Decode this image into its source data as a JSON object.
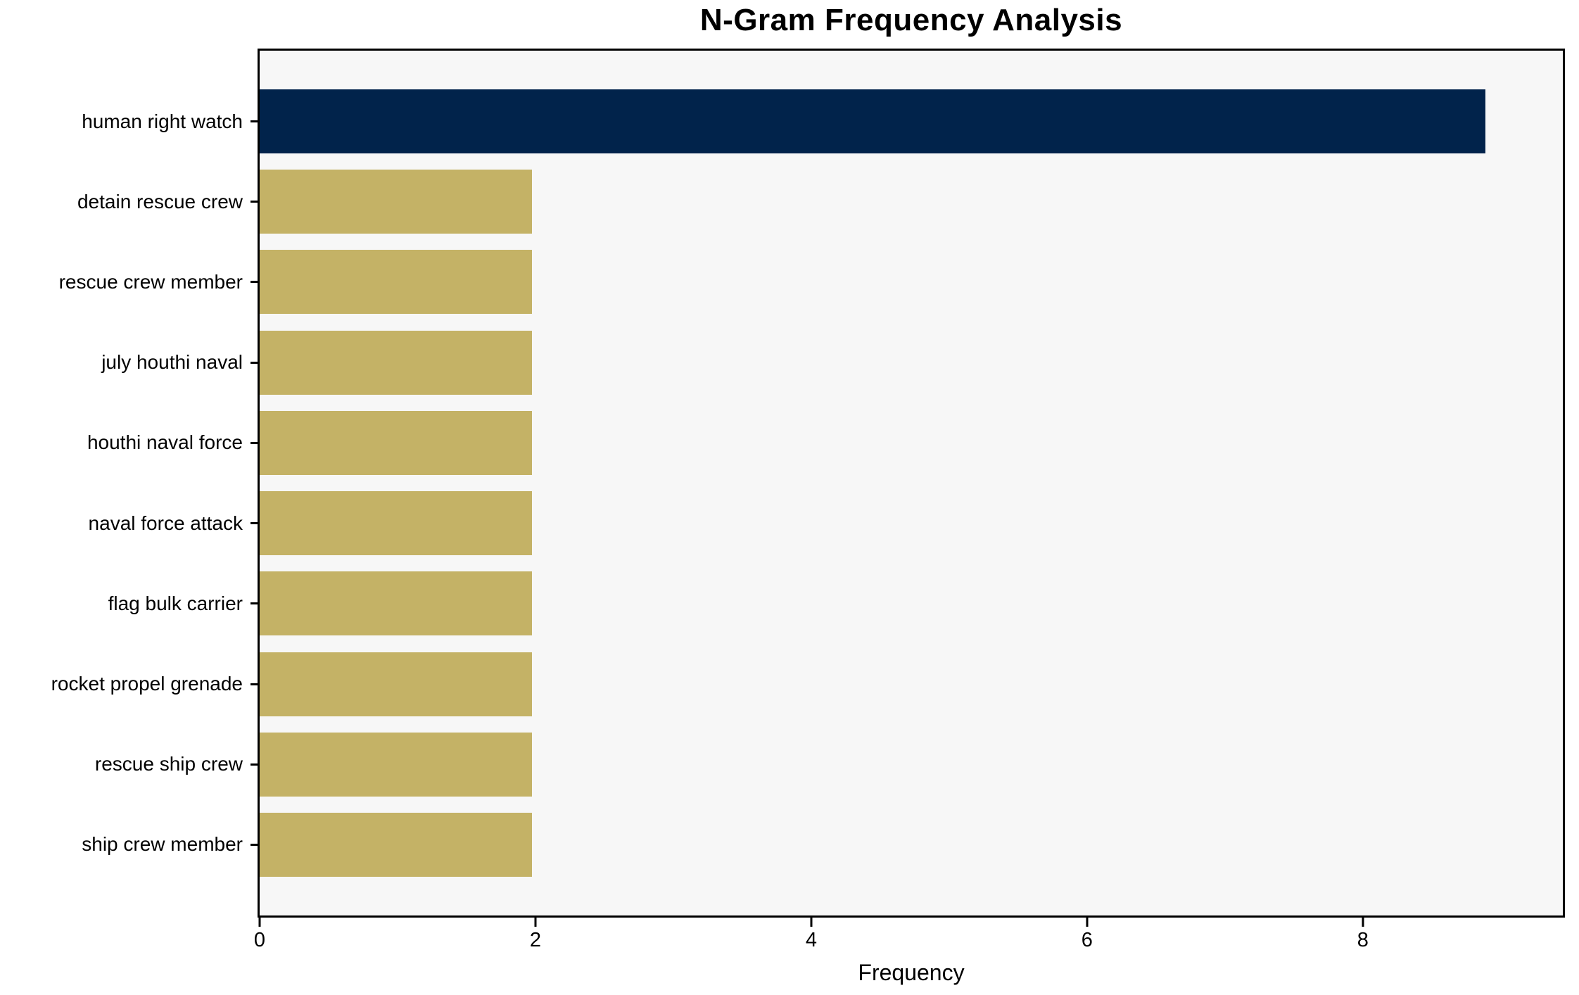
{
  "chart_data": {
    "type": "bar",
    "orientation": "horizontal",
    "title": "N-Gram Frequency Analysis",
    "xlabel": "Frequency",
    "ylabel": "",
    "categories": [
      "human right watch",
      "detain rescue crew",
      "rescue crew member",
      "july houthi naval",
      "houthi naval force",
      "naval force attack",
      "flag bulk carrier",
      "rocket propel grenade",
      "rescue ship crew",
      "ship crew member"
    ],
    "values": [
      9,
      2,
      2,
      2,
      2,
      2,
      2,
      2,
      2,
      2
    ],
    "bar_colors": [
      "#01234B",
      "#C4B266",
      "#C4B266",
      "#C4B266",
      "#C4B266",
      "#C4B266",
      "#C4B266",
      "#C4B266",
      "#C4B266",
      "#C4B266"
    ],
    "xlim": [
      0,
      9.45
    ],
    "xticks": [
      0,
      2,
      4,
      6,
      8
    ],
    "grid": false,
    "legend_position": "none",
    "colors": {
      "highlight_bar": "#01234B",
      "default_bar": "#C4B266",
      "plot_background": "#F7F7F7",
      "figure_background": "#FFFFFF",
      "axis": "#000000",
      "text": "#000000"
    }
  }
}
